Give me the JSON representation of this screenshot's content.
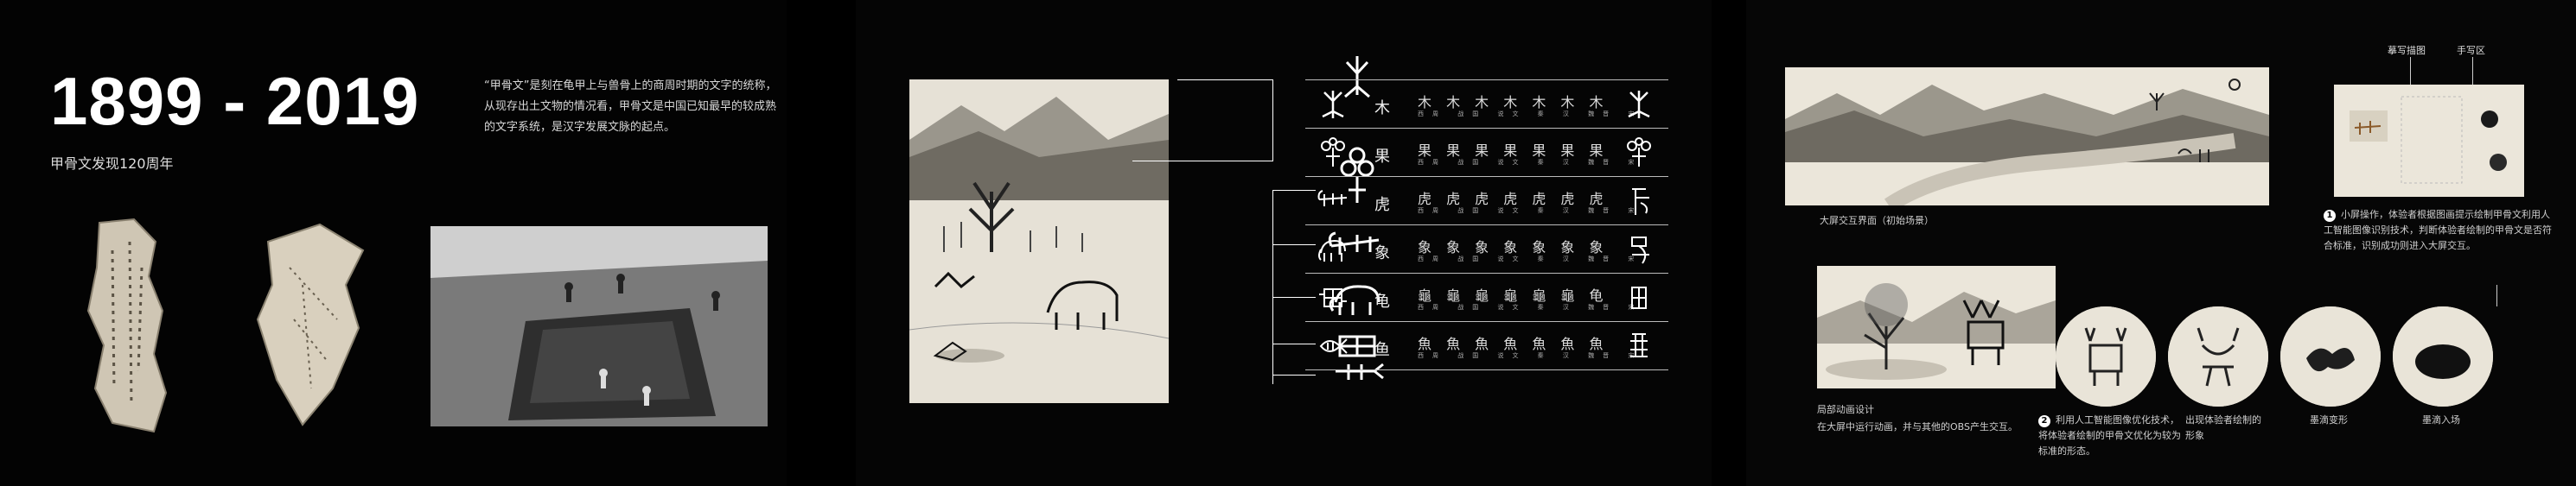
{
  "panel1": {
    "title": "1899 - 2019",
    "subtitle": "甲骨文发现120周年",
    "description": "“甲骨文”是刻在龟甲上与兽骨上的商周时期的文字的统称，从现存出土文物的情况看，甲骨文是中国已知最早的较成熟的文字系统，是汉字发展文脉的起点。"
  },
  "panel2": {
    "rows": [
      {
        "char": "木",
        "evolution": "木 木 木 木 木 木 木",
        "labels": "西周 战国 说文 秦 汉 魏晋 宋"
      },
      {
        "char": "果",
        "evolution": "果 果 果 果 果 果 果",
        "labels": "西周 战国 说文 秦 汉 魏晋 宋"
      },
      {
        "char": "虎",
        "evolution": "虎 虎 虎 虎 虎 虎 虎",
        "labels": "西周 战国 说文 秦 汉 魏晋 宋"
      },
      {
        "char": "象",
        "evolution": "象 象 象 象 象 象 象",
        "labels": "西周 战国 说文 秦 汉 魏晋 宋"
      },
      {
        "char": "龟",
        "evolution": "龜 龜 龜 龜 龜 龜 龟",
        "labels": "西周 战国 说文 秦 汉 魏晋 宋"
      },
      {
        "char": "鱼",
        "evolution": "魚 魚 魚 魚 魚 魚 魚",
        "labels": "西周 战国 说文 秦 汉 魏晋 宋"
      }
    ]
  },
  "panel3": {
    "tab_copy": "摹写描图",
    "tab_write": "手写区",
    "main_caption": "大屏交互界面（初始场景）",
    "step1": "小屏操作，体验者根据图画提示绘制甲骨文利用人工智能图像识别技术，判断体验者绘制的甲骨文是否符合标准，识别成功则进入大屏交互。",
    "step2": "利用人工智能图像优化技术，将体验者绘制的甲骨文优化为较为标准的形态。",
    "local_anim_title": "局部动画设计",
    "local_anim_desc": "在大屏中运行动画，并与其他的OBS产生交互。",
    "c1": "出现体验者绘制的形象",
    "c2": "墨滴变形",
    "c3": "墨滴入场"
  },
  "colors": {
    "background": "#000000",
    "paper": "#e9e4d8",
    "ink": "#222222"
  }
}
